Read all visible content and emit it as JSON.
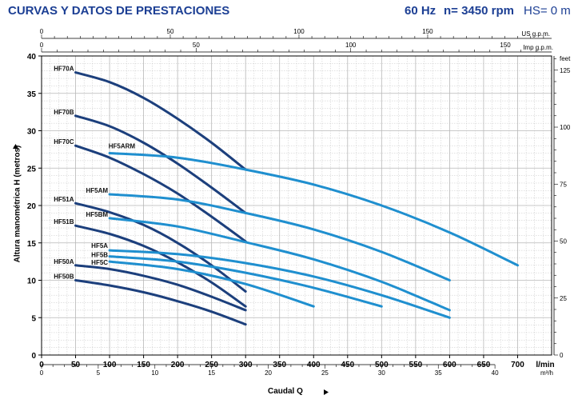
{
  "header": {
    "title": "CURVAS Y DATOS DE PRESTACIONES",
    "frequency": "60 Hz",
    "speed": "n= 3450 rpm",
    "suction": "HS= 0 m"
  },
  "colors": {
    "title": "#1c3f94",
    "dark_curves": "#1c3f7c",
    "light_curves": "#1f8fcf",
    "grid": "#b8b8b8"
  },
  "chart_data": {
    "type": "line",
    "title": "",
    "xlabel": "Caudal Q",
    "ylabel": "Altura manométrica H (metros)",
    "xlim": [
      0,
      750
    ],
    "ylim": [
      0,
      40
    ],
    "grid": true,
    "x_unit": "l/min",
    "x_ticks": [
      0,
      50,
      100,
      150,
      200,
      250,
      300,
      350,
      400,
      450,
      500,
      550,
      600,
      650,
      700
    ],
    "y_ticks": [
      0,
      5,
      10,
      15,
      20,
      25,
      30,
      35,
      40
    ],
    "secondary_axes": {
      "top_us_label": "US g.p.m.",
      "top_us_ticks": [
        0,
        50,
        100,
        150
      ],
      "top_imp_label": "Imp g.p.m.",
      "top_imp_ticks": [
        0,
        50,
        100,
        150
      ],
      "bottom_m3h_label": "m³/h",
      "bottom_m3h_ticks": [
        0,
        5,
        10,
        15,
        20,
        25,
        30,
        35,
        40
      ],
      "right_feet_label": "feet",
      "right_feet_ticks": [
        0,
        25,
        50,
        75,
        100,
        125
      ]
    },
    "series": [
      {
        "name": "HF70A",
        "style": "dark",
        "x": [
          50,
          100,
          150,
          200,
          250,
          300
        ],
        "y": [
          37.8,
          36.5,
          34.4,
          31.6,
          28.4,
          24.8
        ]
      },
      {
        "name": "HF70B",
        "style": "dark",
        "x": [
          50,
          100,
          150,
          200,
          250,
          300
        ],
        "y": [
          32,
          30.6,
          28.4,
          25.6,
          22.4,
          19
        ]
      },
      {
        "name": "HF70C",
        "style": "dark",
        "x": [
          50,
          100,
          150,
          200,
          250,
          300
        ],
        "y": [
          28,
          26.4,
          24.2,
          21.6,
          18.5,
          15.2
        ]
      },
      {
        "name": "HF51A",
        "style": "dark",
        "x": [
          50,
          100,
          150,
          200,
          250,
          300
        ],
        "y": [
          20.3,
          19.1,
          17.4,
          15,
          12,
          8.5
        ]
      },
      {
        "name": "HF51B",
        "style": "dark",
        "x": [
          50,
          100,
          150,
          200,
          250,
          300
        ],
        "y": [
          17.3,
          16.2,
          14.6,
          12.4,
          9.7,
          6.5
        ]
      },
      {
        "name": "HF50A",
        "style": "dark",
        "x": [
          50,
          100,
          150,
          200,
          250,
          300
        ],
        "y": [
          12,
          11.5,
          10.6,
          9.4,
          7.8,
          6
        ]
      },
      {
        "name": "HF50B",
        "style": "dark",
        "x": [
          50,
          100,
          150,
          200,
          250,
          300
        ],
        "y": [
          10,
          9.3,
          8.4,
          7.2,
          5.8,
          4.1
        ]
      },
      {
        "name": "HF5ARM",
        "style": "light",
        "x": [
          100,
          200,
          300,
          400,
          500,
          600,
          700
        ],
        "y": [
          27,
          26.4,
          24.8,
          22.8,
          20,
          16.4,
          12
        ]
      },
      {
        "name": "HF5AM",
        "style": "light",
        "x": [
          100,
          200,
          300,
          400,
          500,
          600
        ],
        "y": [
          21.5,
          20.8,
          19,
          16.8,
          13.8,
          10
        ]
      },
      {
        "name": "HF5BM",
        "style": "light",
        "x": [
          100,
          200,
          300,
          400,
          500,
          600
        ],
        "y": [
          18.3,
          17.2,
          15.1,
          12.8,
          9.8,
          6
        ]
      },
      {
        "name": "HF5A",
        "style": "light",
        "x": [
          100,
          200,
          300,
          400,
          500,
          600
        ],
        "y": [
          14,
          13.5,
          12.3,
          10.5,
          8,
          5
        ]
      },
      {
        "name": "HF5B",
        "style": "light",
        "x": [
          100,
          200,
          300,
          400,
          500
        ],
        "y": [
          13.2,
          12.5,
          11,
          9,
          6.5
        ]
      },
      {
        "name": "HF5C",
        "style": "light",
        "x": [
          100,
          200,
          300,
          400
        ],
        "y": [
          12.5,
          11.5,
          9.5,
          6.5
        ]
      }
    ]
  }
}
